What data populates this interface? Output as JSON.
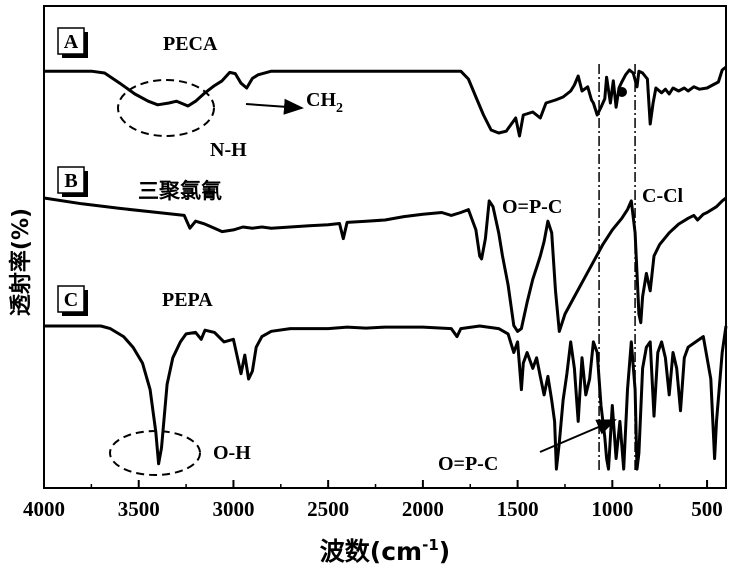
{
  "chart_data": {
    "type": "line",
    "xlabel": "波数(cm",
    "xlabel_sup": "-1",
    "xlabel_end": ")",
    "ylabel": "透射率(%)",
    "xlim": [
      4000,
      400
    ],
    "x_ticks": [
      {
        "value": 4000,
        "label": "4000"
      },
      {
        "value": 3500,
        "label": "3500"
      },
      {
        "value": 3000,
        "label": "3000"
      },
      {
        "value": 2500,
        "label": "2500"
      },
      {
        "value": 2000,
        "label": "2000"
      },
      {
        "value": 1500,
        "label": "1500"
      },
      {
        "value": 1000,
        "label": "1000"
      },
      {
        "value": 500,
        "label": "500"
      }
    ],
    "reference_lines_x": [
      1070,
      880
    ],
    "series": [
      {
        "name": "PECA",
        "panel": "A",
        "points": [
          [
            4000,
            0.02
          ],
          [
            3750,
            0.02
          ],
          [
            3680,
            0.05
          ],
          [
            3600,
            0.22
          ],
          [
            3520,
            0.4
          ],
          [
            3450,
            0.52
          ],
          [
            3400,
            0.58
          ],
          [
            3340,
            0.55
          ],
          [
            3300,
            0.52
          ],
          [
            3240,
            0.6
          ],
          [
            3200,
            0.52
          ],
          [
            3150,
            0.38
          ],
          [
            3100,
            0.26
          ],
          [
            3060,
            0.18
          ],
          [
            3020,
            0.04
          ],
          [
            2990,
            0.06
          ],
          [
            2960,
            0.22
          ],
          [
            2930,
            0.3
          ],
          [
            2900,
            0.14
          ],
          [
            2870,
            0.08
          ],
          [
            2800,
            0.02
          ],
          [
            2000,
            0.02
          ],
          [
            1800,
            0.02
          ],
          [
            1760,
            0.15
          ],
          [
            1720,
            0.45
          ],
          [
            1680,
            0.75
          ],
          [
            1640,
            1.0
          ],
          [
            1600,
            1.05
          ],
          [
            1560,
            1.02
          ],
          [
            1510,
            0.8
          ],
          [
            1490,
            1.1
          ],
          [
            1470,
            0.75
          ],
          [
            1420,
            0.7
          ],
          [
            1380,
            0.8
          ],
          [
            1350,
            0.55
          ],
          [
            1300,
            0.5
          ],
          [
            1260,
            0.45
          ],
          [
            1220,
            0.35
          ],
          [
            1200,
            0.25
          ],
          [
            1180,
            0.1
          ],
          [
            1160,
            0.35
          ],
          [
            1130,
            0.28
          ],
          [
            1110,
            0.5
          ],
          [
            1100,
            0.55
          ],
          [
            1080,
            0.75
          ],
          [
            1060,
            0.62
          ],
          [
            1040,
            0.48
          ],
          [
            1030,
            0.12
          ],
          [
            1010,
            0.55
          ],
          [
            995,
            0.18
          ],
          [
            980,
            0.62
          ],
          [
            965,
            0.3
          ],
          [
            950,
            0.2
          ],
          [
            930,
            0.08
          ],
          [
            910,
            0.0
          ],
          [
            890,
            0.05
          ],
          [
            870,
            0.28
          ],
          [
            860,
            0.02
          ],
          [
            840,
            0.05
          ],
          [
            815,
            0.15
          ],
          [
            800,
            0.9
          ],
          [
            785,
            0.55
          ],
          [
            770,
            0.3
          ],
          [
            740,
            0.38
          ],
          [
            720,
            0.32
          ],
          [
            700,
            0.4
          ],
          [
            680,
            0.3
          ],
          [
            650,
            0.35
          ],
          [
            620,
            0.3
          ],
          [
            600,
            0.35
          ],
          [
            570,
            0.28
          ],
          [
            540,
            0.32
          ],
          [
            500,
            0.3
          ],
          [
            470,
            0.25
          ],
          [
            440,
            0.2
          ],
          [
            420,
            0.0
          ],
          [
            400,
            -0.05
          ]
        ]
      },
      {
        "name": "三聚氯氰",
        "panel": "B",
        "points": [
          [
            4000,
            0.0
          ],
          [
            3800,
            0.1
          ],
          [
            3600,
            0.18
          ],
          [
            3400,
            0.25
          ],
          [
            3260,
            0.3
          ],
          [
            3230,
            0.52
          ],
          [
            3200,
            0.4
          ],
          [
            3150,
            0.45
          ],
          [
            3100,
            0.52
          ],
          [
            3060,
            0.58
          ],
          [
            3000,
            0.55
          ],
          [
            2950,
            0.5
          ],
          [
            2900,
            0.52
          ],
          [
            2850,
            0.5
          ],
          [
            2800,
            0.52
          ],
          [
            2700,
            0.5
          ],
          [
            2600,
            0.48
          ],
          [
            2500,
            0.46
          ],
          [
            2440,
            0.44
          ],
          [
            2420,
            0.7
          ],
          [
            2400,
            0.42
          ],
          [
            2300,
            0.4
          ],
          [
            2200,
            0.38
          ],
          [
            2100,
            0.32
          ],
          [
            2000,
            0.28
          ],
          [
            1900,
            0.25
          ],
          [
            1850,
            0.3
          ],
          [
            1800,
            0.25
          ],
          [
            1760,
            0.2
          ],
          [
            1720,
            0.55
          ],
          [
            1700,
            1.0
          ],
          [
            1690,
            1.05
          ],
          [
            1670,
            0.7
          ],
          [
            1650,
            0.05
          ],
          [
            1630,
            0.15
          ],
          [
            1600,
            0.6
          ],
          [
            1580,
            1.0
          ],
          [
            1550,
            1.5
          ],
          [
            1520,
            2.2
          ],
          [
            1500,
            2.3
          ],
          [
            1480,
            2.25
          ],
          [
            1450,
            1.8
          ],
          [
            1420,
            1.4
          ],
          [
            1400,
            1.2
          ],
          [
            1380,
            1.0
          ],
          [
            1360,
            0.75
          ],
          [
            1340,
            0.4
          ],
          [
            1320,
            0.6
          ],
          [
            1300,
            1.6
          ],
          [
            1280,
            2.3
          ],
          [
            1270,
            2.2
          ],
          [
            1250,
            2.0
          ],
          [
            1200,
            1.7
          ],
          [
            1150,
            1.4
          ],
          [
            1100,
            1.1
          ],
          [
            1050,
            0.8
          ],
          [
            1000,
            0.55
          ],
          [
            950,
            0.35
          ],
          [
            920,
            0.2
          ],
          [
            900,
            0.05
          ],
          [
            880,
            0.6
          ],
          [
            860,
            2.0
          ],
          [
            850,
            2.15
          ],
          [
            840,
            1.7
          ],
          [
            820,
            1.3
          ],
          [
            800,
            1.6
          ],
          [
            780,
            1.0
          ],
          [
            750,
            0.8
          ],
          [
            700,
            0.6
          ],
          [
            650,
            0.45
          ],
          [
            600,
            0.35
          ],
          [
            570,
            0.3
          ],
          [
            550,
            0.38
          ],
          [
            520,
            0.28
          ],
          [
            500,
            0.25
          ],
          [
            450,
            0.15
          ],
          [
            420,
            0.05
          ],
          [
            400,
            0.0
          ]
        ]
      },
      {
        "name": "PEPA",
        "panel": "C",
        "points": [
          [
            4000,
            0.0
          ],
          [
            3700,
            0.0
          ],
          [
            3650,
            0.05
          ],
          [
            3580,
            0.2
          ],
          [
            3530,
            0.4
          ],
          [
            3480,
            0.7
          ],
          [
            3440,
            1.2
          ],
          [
            3410,
            2.0
          ],
          [
            3395,
            2.6
          ],
          [
            3380,
            2.3
          ],
          [
            3350,
            1.1
          ],
          [
            3320,
            0.6
          ],
          [
            3280,
            0.3
          ],
          [
            3250,
            0.15
          ],
          [
            3200,
            0.12
          ],
          [
            3170,
            0.25
          ],
          [
            3150,
            0.08
          ],
          [
            3100,
            0.12
          ],
          [
            3050,
            0.3
          ],
          [
            3000,
            0.25
          ],
          [
            2960,
            0.9
          ],
          [
            2940,
            0.55
          ],
          [
            2920,
            1.0
          ],
          [
            2900,
            0.85
          ],
          [
            2880,
            0.4
          ],
          [
            2850,
            0.2
          ],
          [
            2800,
            0.1
          ],
          [
            2700,
            0.05
          ],
          [
            2600,
            0.05
          ],
          [
            2500,
            0.05
          ],
          [
            2400,
            0.02
          ],
          [
            2300,
            0.04
          ],
          [
            2200,
            0.02
          ],
          [
            2000,
            0.02
          ],
          [
            1850,
            0.05
          ],
          [
            1820,
            0.2
          ],
          [
            1800,
            0.05
          ],
          [
            1700,
            0.0
          ],
          [
            1600,
            0.05
          ],
          [
            1550,
            0.15
          ],
          [
            1520,
            0.5
          ],
          [
            1500,
            0.3
          ],
          [
            1480,
            1.2
          ],
          [
            1470,
            0.7
          ],
          [
            1450,
            0.5
          ],
          [
            1420,
            0.8
          ],
          [
            1400,
            0.6
          ],
          [
            1380,
            0.95
          ],
          [
            1360,
            1.3
          ],
          [
            1340,
            0.95
          ],
          [
            1320,
            1.4
          ],
          [
            1305,
            1.8
          ],
          [
            1295,
            2.7
          ],
          [
            1280,
            2.2
          ],
          [
            1260,
            1.4
          ],
          [
            1240,
            0.9
          ],
          [
            1220,
            0.3
          ],
          [
            1200,
            0.8
          ],
          [
            1180,
            1.8
          ],
          [
            1160,
            0.6
          ],
          [
            1140,
            1.3
          ],
          [
            1120,
            1.0
          ],
          [
            1100,
            0.3
          ],
          [
            1080,
            0.5
          ],
          [
            1060,
            1.5
          ],
          [
            1040,
            2.1
          ],
          [
            1030,
            2.5
          ],
          [
            1020,
            2.7
          ],
          [
            1000,
            1.5
          ],
          [
            980,
            2.5
          ],
          [
            960,
            1.8
          ],
          [
            940,
            2.7
          ],
          [
            920,
            1.2
          ],
          [
            900,
            0.3
          ],
          [
            880,
            1.2
          ],
          [
            870,
            2.7
          ],
          [
            860,
            2.4
          ],
          [
            840,
            0.8
          ],
          [
            820,
            0.4
          ],
          [
            800,
            0.3
          ],
          [
            780,
            1.7
          ],
          [
            760,
            0.5
          ],
          [
            740,
            0.3
          ],
          [
            720,
            0.6
          ],
          [
            700,
            1.3
          ],
          [
            680,
            0.5
          ],
          [
            660,
            0.8
          ],
          [
            640,
            1.6
          ],
          [
            620,
            0.6
          ],
          [
            600,
            0.4
          ],
          [
            560,
            0.3
          ],
          [
            520,
            0.2
          ],
          [
            480,
            1.0
          ],
          [
            460,
            2.5
          ],
          [
            450,
            1.8
          ],
          [
            420,
            0.5
          ],
          [
            400,
            0.0
          ]
        ]
      }
    ],
    "panels": [
      {
        "letter": "A",
        "name": "PECA"
      },
      {
        "letter": "B",
        "name": "三聚氯氰"
      },
      {
        "letter": "C",
        "name": "PEPA"
      }
    ],
    "annotations": [
      {
        "text": "N-H",
        "near_x": 3320
      },
      {
        "text": "CH",
        "sub": "2",
        "near_x": 2930
      },
      {
        "text": "O=P-C",
        "near_x": 1070
      },
      {
        "text": "C-Cl",
        "near_x": 880
      },
      {
        "text": "O-H",
        "near_x": 3400
      },
      {
        "text": "O=P-C",
        "near_x": 1020
      }
    ],
    "grid": false,
    "legend": "none"
  }
}
